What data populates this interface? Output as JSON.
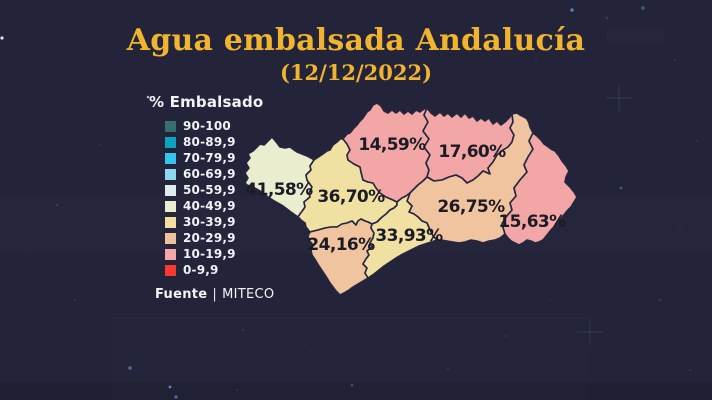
{
  "header": {
    "title": "Agua embalsada Andalucía",
    "subtitle": "(12/12/2022)"
  },
  "legend": {
    "title": "% Embalsado",
    "items": [
      {
        "label": "90-100",
        "color": "#35706f"
      },
      {
        "label": "80-89,9",
        "color": "#0aa3c2"
      },
      {
        "label": "70-79,9",
        "color": "#33c4f0"
      },
      {
        "label": "60-69,9",
        "color": "#8cd8f1"
      },
      {
        "label": "50-59,9",
        "color": "#dcecee"
      },
      {
        "label": "40-49,9",
        "color": "#eaeecf"
      },
      {
        "label": "30-39,9",
        "color": "#f0dfa0"
      },
      {
        "label": "20-29,9",
        "color": "#eec19c"
      },
      {
        "label": "10-19,9",
        "color": "#f4a9a8"
      },
      {
        "label": "0-9,9",
        "color": "#f93a31"
      }
    ]
  },
  "source": {
    "label": "Fuente",
    "separator": "|",
    "agency": "MITECO"
  },
  "colors": {
    "background": "#232339",
    "title_gold": "#f0b42f",
    "map_outline": "#262640",
    "map_label_text": "#1b1b26",
    "legend_text": "#f2f3f7"
  },
  "chart_data": {
    "type": "choropleth_map",
    "title": "Agua embalsada Andalucía",
    "date": "12/12/2022",
    "region": "Andalucía",
    "metric": "% Embalsado",
    "source": "MITECO",
    "values": [
      {
        "province": "Huelva",
        "label": "41,58%",
        "value": 41.58,
        "bucket": "40-49,9",
        "color": "#eaeecf"
      },
      {
        "province": "Sevilla",
        "label": "36,70%",
        "value": 36.7,
        "bucket": "30-39,9",
        "color": "#f0e1a2"
      },
      {
        "province": "Córdoba",
        "label": "14,59%",
        "value": 14.59,
        "bucket": "10-19,9",
        "color": "#f2a6a5"
      },
      {
        "province": "Jaén",
        "label": "17,60%",
        "value": 17.6,
        "bucket": "10-19,9",
        "color": "#f2a6a5"
      },
      {
        "province": "Granada",
        "label": "26,75%",
        "value": 26.75,
        "bucket": "20-29,9",
        "color": "#f0c49e"
      },
      {
        "province": "Almería",
        "label": "15,63%",
        "value": 15.63,
        "bucket": "10-19,9",
        "color": "#f2a6a5"
      },
      {
        "province": "Cádiz",
        "label": "24,16%",
        "value": 24.16,
        "bucket": "20-29,9",
        "color": "#f0c49e"
      },
      {
        "province": "Málaga",
        "label": "33,93%",
        "value": 33.93,
        "bucket": "30-39,9",
        "color": "#f0e1a2"
      }
    ]
  }
}
